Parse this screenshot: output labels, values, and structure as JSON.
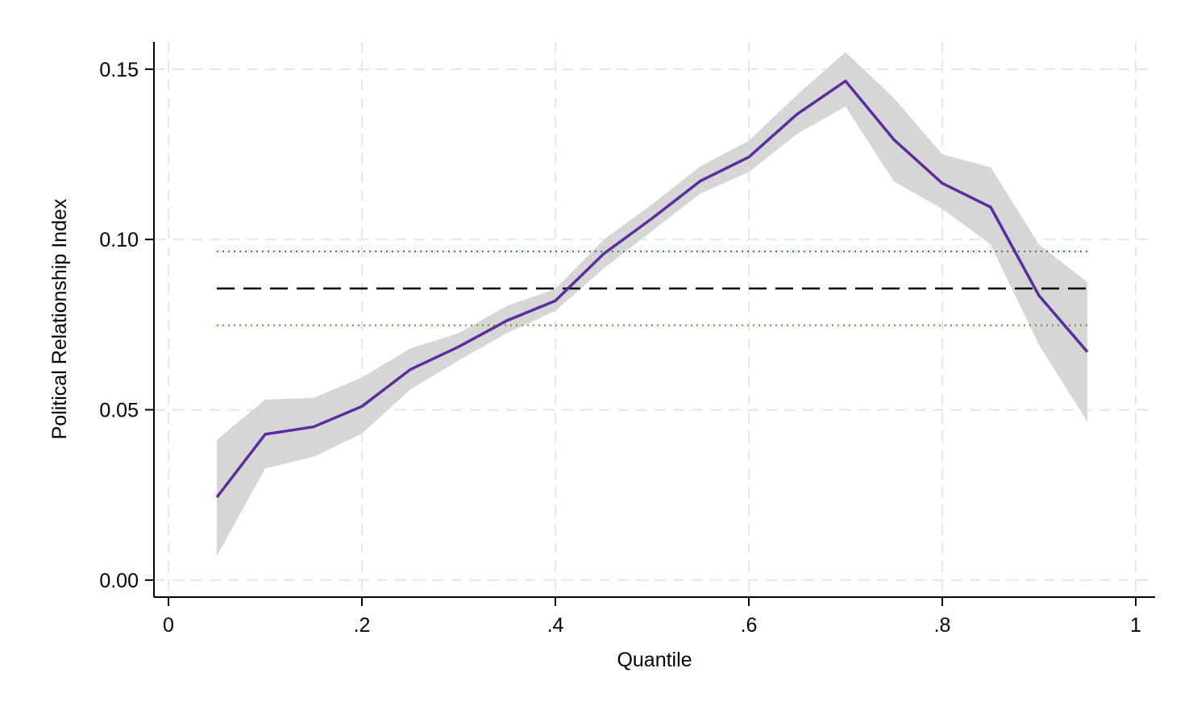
{
  "chart_data": {
    "type": "line",
    "title": "",
    "xlabel": "Quantile",
    "ylabel": "Political Relationship Index",
    "xlim": [
      -0.015,
      1.02
    ],
    "ylim": [
      -0.005,
      0.158
    ],
    "grid": true,
    "legend": "none",
    "x_ticks": [
      {
        "value": 0,
        "label": "0"
      },
      {
        "value": 0.2,
        "label": ".2"
      },
      {
        "value": 0.4,
        "label": ".4"
      },
      {
        "value": 0.6,
        "label": ".6"
      },
      {
        "value": 0.8,
        "label": ".8"
      },
      {
        "value": 1,
        "label": "1"
      }
    ],
    "y_ticks": [
      {
        "value": 0,
        "label": "0.00"
      },
      {
        "value": 0.05,
        "label": "0.05"
      },
      {
        "value": 0.1,
        "label": "0.10"
      },
      {
        "value": 0.15,
        "label": "0.15"
      }
    ],
    "x": [
      0.05,
      0.1,
      0.15,
      0.2,
      0.25,
      0.3,
      0.35,
      0.4,
      0.45,
      0.5,
      0.55,
      0.6,
      0.65,
      0.7,
      0.75,
      0.8,
      0.85,
      0.9,
      0.95
    ],
    "series": [
      {
        "values": [
          0.0243,
          0.0428,
          0.045,
          0.051,
          0.0618,
          0.0685,
          0.0762,
          0.082,
          0.0958,
          0.1062,
          0.1172,
          0.1242,
          0.1368,
          0.1465,
          0.1293,
          0.1165,
          0.1095,
          0.0835,
          0.067
        ],
        "ci_lower": [
          0.007,
          0.0328,
          0.0362,
          0.043,
          0.056,
          0.0645,
          0.0725,
          0.079,
          0.0915,
          0.1025,
          0.1135,
          0.1198,
          0.131,
          0.139,
          0.117,
          0.109,
          0.0985,
          0.069,
          0.0465
        ],
        "ci_upper": [
          0.0412,
          0.053,
          0.0535,
          0.0595,
          0.068,
          0.0725,
          0.0805,
          0.0855,
          0.1,
          0.1103,
          0.1215,
          0.129,
          0.1425,
          0.155,
          0.1415,
          0.125,
          0.1212,
          0.0985,
          0.0875
        ]
      }
    ],
    "reference_lines": [
      {
        "style": "dashed",
        "y": 0.0856,
        "x_range": [
          0.05,
          0.95
        ],
        "color": "#000000"
      },
      {
        "style": "dotted",
        "y": 0.0965,
        "x_range": [
          0.05,
          0.95
        ],
        "color": "#2e7d6b"
      },
      {
        "style": "dotted",
        "y": 0.0748,
        "x_range": [
          0.05,
          0.95
        ],
        "color": "#7a8a2a"
      }
    ],
    "colors": {
      "line": "#5b2d9e",
      "ci_band": "#d6d6d6",
      "grid": "#e6e6e6",
      "axis": "#000000"
    }
  }
}
